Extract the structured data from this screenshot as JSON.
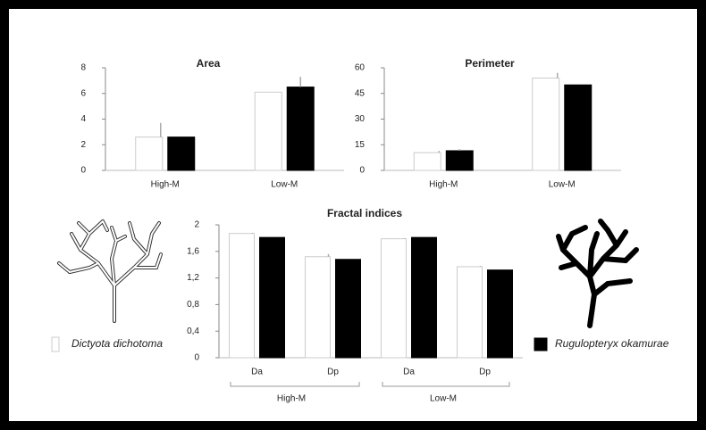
{
  "chart_data": [
    {
      "type": "bar",
      "title": "Area",
      "categories": [
        "High-M",
        "Low-M"
      ],
      "series": [
        {
          "color": "#ffffff",
          "values": [
            2.6,
            6.1
          ],
          "errors": [
            1.1,
            null
          ]
        },
        {
          "color": "#000000",
          "values": [
            2.6,
            6.5
          ],
          "errors": [
            null,
            0.8
          ]
        }
      ],
      "ylim": [
        0,
        8
      ],
      "yticks": [
        0,
        2,
        4,
        6,
        8
      ]
    },
    {
      "type": "bar",
      "title": "Perimeter",
      "categories": [
        "High-M",
        "Low-M"
      ],
      "series": [
        {
          "color": "#ffffff",
          "values": [
            10.4,
            54
          ],
          "errors": [
            1,
            3
          ]
        },
        {
          "color": "#000000",
          "values": [
            11.5,
            50
          ],
          "errors": [
            1,
            null
          ]
        }
      ],
      "ylim": [
        0,
        60
      ],
      "yticks": [
        0,
        15,
        30,
        45,
        60
      ]
    },
    {
      "type": "bar",
      "title": "Fractal indices",
      "categories": [
        "Da",
        "Dp",
        "Da",
        "Dp"
      ],
      "group_labels": [
        "High-M",
        "Low-M"
      ],
      "series": [
        {
          "name": "Dictyota dichotoma",
          "color": "#ffffff",
          "values": [
            1.87,
            1.52,
            1.79,
            1.37
          ],
          "errors": [
            0.01,
            0.04,
            0.01,
            0.01
          ]
        },
        {
          "name": "Rugulopteryx okamurae",
          "color": "#000000",
          "values": [
            1.81,
            1.48,
            1.81,
            1.32
          ],
          "errors": [
            null,
            null,
            null,
            null
          ]
        }
      ],
      "ylim": [
        0,
        2
      ],
      "yticks": [
        0,
        {
          "value": 0.4,
          "label": "0,4"
        },
        {
          "value": 0.8,
          "label": "0,8"
        },
        {
          "value": 1.2,
          "label": "1,2"
        },
        {
          "value": 1.6,
          "label": "1,6"
        },
        2
      ]
    }
  ]
}
